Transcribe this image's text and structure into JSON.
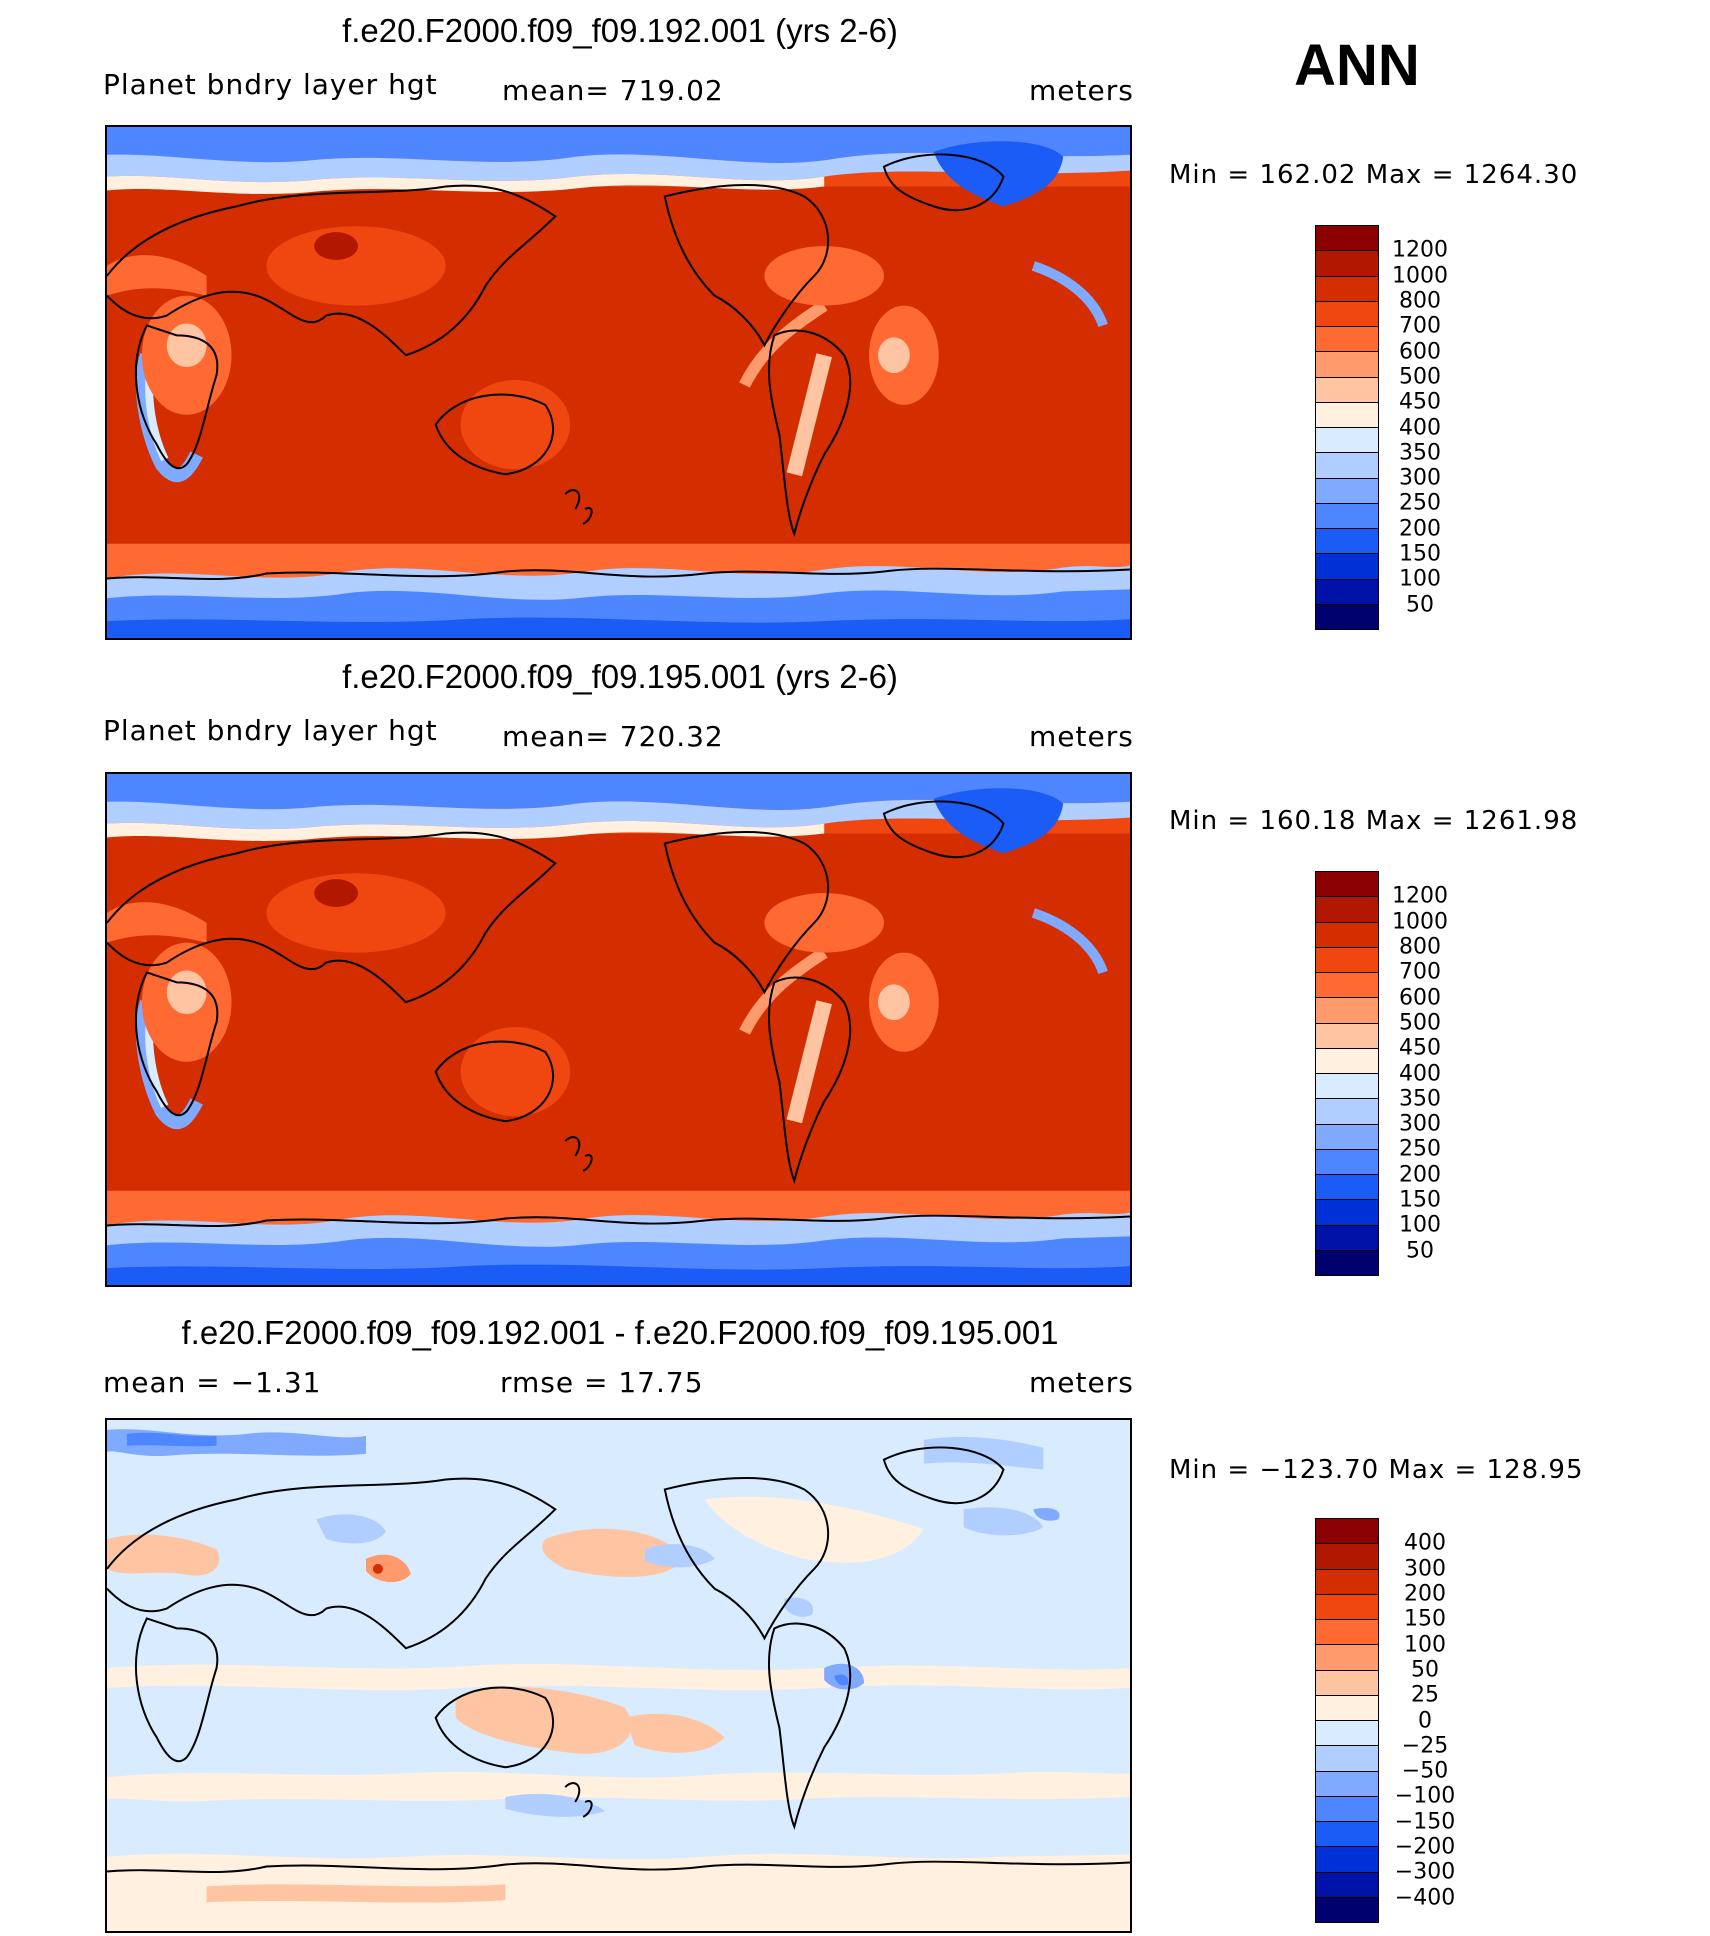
{
  "header": {
    "season": "ANN"
  },
  "panels": [
    {
      "title": "f.e20.F2000.f09_f09.192.001 (yrs 2-6)",
      "left": "Planet bndry layer hgt",
      "center": "mean= 719.02",
      "right": "meters",
      "minmax": "Min = 162.02 Max = 1264.30",
      "colorbar": {
        "labels": [
          "1200",
          "1000",
          "800",
          "700",
          "600",
          "500",
          "450",
          "400",
          "350",
          "300",
          "250",
          "200",
          "150",
          "100",
          "50"
        ],
        "colors": [
          "#8b0000",
          "#b21800",
          "#d42d00",
          "#f04610",
          "#ff6a33",
          "#ff9a6c",
          "#ffc4a2",
          "#fff0e0",
          "#d9ebff",
          "#b0ceff",
          "#80aaff",
          "#4d86ff",
          "#1a5cf5",
          "#0031d6",
          "#0012a8",
          "#00006e"
        ]
      }
    },
    {
      "title": "f.e20.F2000.f09_f09.195.001 (yrs 2-6)",
      "left": "Planet bndry layer hgt",
      "center": "mean= 720.32",
      "right": "meters",
      "minmax": "Min = 160.18 Max = 1261.98",
      "colorbar": {
        "labels": [
          "1200",
          "1000",
          "800",
          "700",
          "600",
          "500",
          "450",
          "400",
          "350",
          "300",
          "250",
          "200",
          "150",
          "100",
          "50"
        ],
        "colors": [
          "#8b0000",
          "#b21800",
          "#d42d00",
          "#f04610",
          "#ff6a33",
          "#ff9a6c",
          "#ffc4a2",
          "#fff0e0",
          "#d9ebff",
          "#b0ceff",
          "#80aaff",
          "#4d86ff",
          "#1a5cf5",
          "#0031d6",
          "#0012a8",
          "#00006e"
        ]
      }
    },
    {
      "title": "f.e20.F2000.f09_f09.192.001 - f.e20.F2000.f09_f09.195.001",
      "left": "mean = −1.31",
      "center": "rmse = 17.75",
      "right": "meters",
      "minmax": "Min = −123.70 Max = 128.95",
      "colorbar": {
        "labels": [
          "400",
          "300",
          "200",
          "150",
          "100",
          "50",
          "25",
          "0",
          "−25",
          "−50",
          "−100",
          "−150",
          "−200",
          "−300",
          "−400"
        ],
        "colors": [
          "#8b0000",
          "#b21800",
          "#d42d00",
          "#f04610",
          "#ff6a33",
          "#ff9a6c",
          "#ffc4a2",
          "#fff0e0",
          "#d9ebff",
          "#b0ceff",
          "#80aaff",
          "#4d86ff",
          "#1a5cf5",
          "#0031d6",
          "#0012a8",
          "#00006e"
        ]
      }
    }
  ]
}
